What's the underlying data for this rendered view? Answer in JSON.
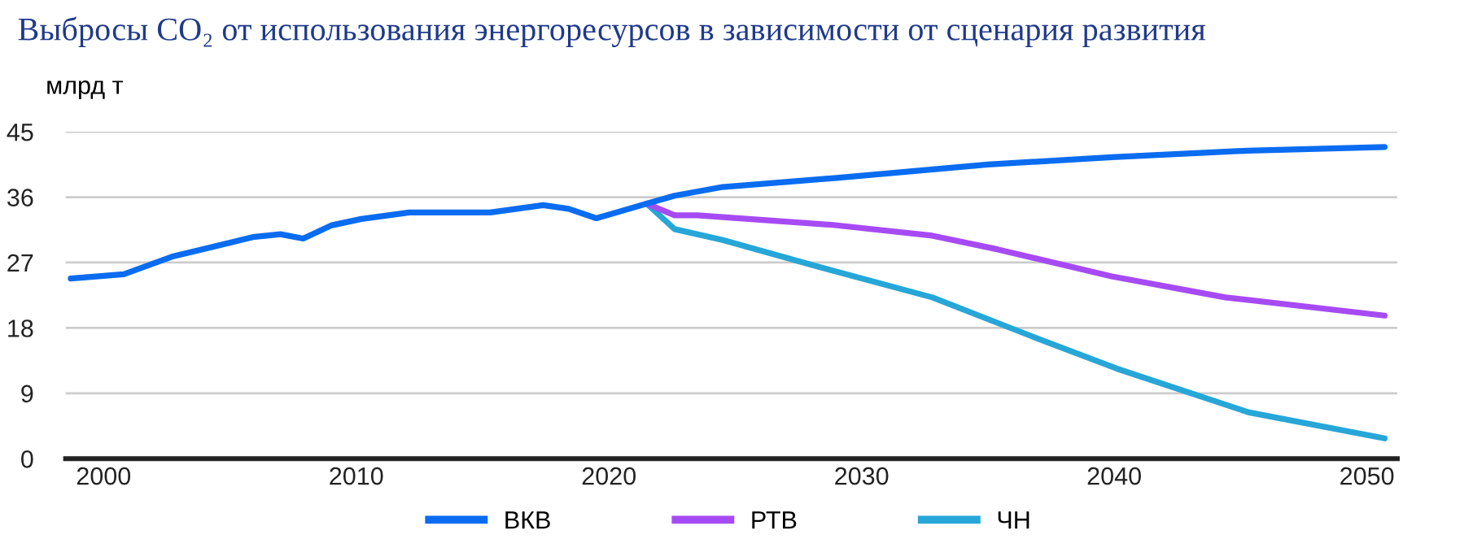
{
  "chart_data": {
    "type": "line",
    "title": "Выбросы CO₂ от использования энергоресурсов в зависимости от сценария развития",
    "ylabel": "млрд т",
    "xlim": [
      1998.5,
      2051.2
    ],
    "xticks": [
      2000,
      2010,
      2020,
      2030,
      2040,
      2050
    ],
    "ylim": [
      0,
      45
    ],
    "yticks": [
      0,
      9,
      18,
      27,
      36,
      45
    ],
    "grid": "y",
    "legend": "bottom",
    "marker": "none",
    "line_style": "solid",
    "series": [
      {
        "name": "ВКВ",
        "color": "#0a6cf0",
        "x": [
          1998.7,
          2000.8,
          2002.7,
          2005.9,
          2007.0,
          2007.9,
          2009.0,
          2010.2,
          2012.1,
          2015.3,
          2017.4,
          2018.4,
          2019.5,
          2021.5,
          2022.6,
          2024.5,
          2029.2,
          2035.0,
          2039.9,
          2045.3,
          2050.7
        ],
        "values": [
          24.8,
          25.4,
          27.8,
          30.5,
          30.9,
          30.3,
          32.1,
          33.0,
          33.9,
          33.9,
          34.9,
          34.4,
          33.1,
          35.1,
          36.2,
          37.4,
          38.7,
          40.5,
          41.5,
          42.4,
          42.9
        ]
      },
      {
        "name": "РТВ",
        "color": "#a64bf4",
        "x": [
          2021.5,
          2022.6,
          2023.5,
          2028.8,
          2032.8,
          2035.4,
          2039.9,
          2044.4,
          2050.7
        ],
        "values": [
          35.1,
          33.5,
          33.5,
          32.2,
          30.7,
          28.8,
          25.1,
          22.2,
          19.7
        ]
      },
      {
        "name": "ЧН",
        "color": "#27a6d8",
        "x": [
          2021.5,
          2022.6,
          2024.5,
          2028.1,
          2032.8,
          2036.7,
          2040.1,
          2045.3,
          2050.7
        ],
        "values": [
          35.1,
          31.6,
          30.1,
          26.6,
          22.2,
          16.9,
          12.4,
          6.4,
          2.8
        ]
      }
    ]
  }
}
